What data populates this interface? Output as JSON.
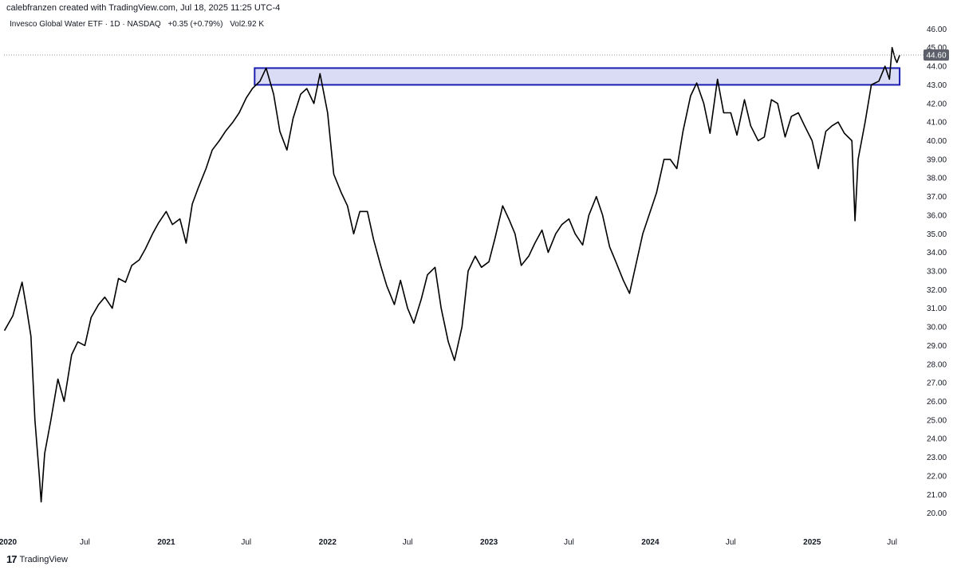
{
  "header": {
    "caption": "calebfranzen created with TradingView.com, Jul 18, 2025 11:25 UTC-4"
  },
  "legend": {
    "title": "Invesco Global Water ETF · 1D · NASDAQ",
    "change": "+0.35 (+0.79%)",
    "volume_label": "Vol",
    "volume": "2.92 K"
  },
  "footer": {
    "brand": "TradingView",
    "logo": "17"
  },
  "colors": {
    "line": "#000000",
    "zone_fill": "#d3d6f5",
    "zone_border": "#1a1fb0",
    "last_price_bg": "#5d606b"
  },
  "chart_data": {
    "type": "line",
    "series": [
      {
        "values_approx": true,
        "x": [
          "2020-01-01",
          "2020-01-20",
          "2020-02-10",
          "2020-02-20",
          "2020-03-01",
          "2020-03-10",
          "2020-03-20",
          "2020-03-24",
          "2020-04-01",
          "2020-04-15",
          "2020-05-01",
          "2020-05-15",
          "2020-06-01",
          "2020-06-15",
          "2020-07-01",
          "2020-07-15",
          "2020-08-01",
          "2020-08-15",
          "2020-09-01",
          "2020-09-15",
          "2020-10-01",
          "2020-10-15",
          "2020-11-01",
          "2020-11-15",
          "2020-12-01",
          "2020-12-15",
          "2021-01-01",
          "2021-01-15",
          "2021-02-01",
          "2021-02-15",
          "2021-03-01",
          "2021-03-15",
          "2021-04-01",
          "2021-04-15",
          "2021-05-01",
          "2021-05-15",
          "2021-06-01",
          "2021-06-15",
          "2021-07-01",
          "2021-07-15",
          "2021-08-01",
          "2021-08-15",
          "2021-09-01",
          "2021-09-15",
          "2021-10-01",
          "2021-10-15",
          "2021-11-01",
          "2021-11-15",
          "2021-12-01",
          "2021-12-15",
          "2022-01-01",
          "2022-01-15",
          "2022-02-01",
          "2022-02-15",
          "2022-03-01",
          "2022-03-15",
          "2022-04-01",
          "2022-04-15",
          "2022-05-01",
          "2022-05-15",
          "2022-06-01",
          "2022-06-15",
          "2022-07-01",
          "2022-07-15",
          "2022-08-01",
          "2022-08-15",
          "2022-09-01",
          "2022-09-15",
          "2022-10-01",
          "2022-10-15",
          "2022-11-01",
          "2022-11-15",
          "2022-12-01",
          "2022-12-15",
          "2023-01-01",
          "2023-01-15",
          "2023-02-01",
          "2023-02-15",
          "2023-03-01",
          "2023-03-15",
          "2023-04-01",
          "2023-04-15",
          "2023-05-01",
          "2023-05-15",
          "2023-06-01",
          "2023-06-15",
          "2023-07-01",
          "2023-07-15",
          "2023-08-01",
          "2023-08-15",
          "2023-09-01",
          "2023-09-15",
          "2023-10-01",
          "2023-10-15",
          "2023-11-01",
          "2023-11-15",
          "2023-12-01",
          "2023-12-15",
          "2024-01-01",
          "2024-01-15",
          "2024-02-01",
          "2024-02-15",
          "2024-03-01",
          "2024-03-15",
          "2024-04-01",
          "2024-04-15",
          "2024-05-01",
          "2024-05-15",
          "2024-06-01",
          "2024-06-15",
          "2024-07-01",
          "2024-07-15",
          "2024-08-01",
          "2024-08-15",
          "2024-09-01",
          "2024-09-15",
          "2024-10-01",
          "2024-10-15",
          "2024-11-01",
          "2024-11-15",
          "2024-12-01",
          "2024-12-15",
          "2025-01-01",
          "2025-01-15",
          "2025-02-01",
          "2025-02-15",
          "2025-03-01",
          "2025-03-15",
          "2025-04-01",
          "2025-04-08",
          "2025-04-15",
          "2025-05-01",
          "2025-05-15",
          "2025-06-01",
          "2025-06-15",
          "2025-06-25",
          "2025-07-01",
          "2025-07-08",
          "2025-07-12",
          "2025-07-18"
        ],
        "values": [
          29.8,
          30.6,
          32.4,
          31.0,
          29.5,
          25.0,
          22.0,
          20.6,
          23.2,
          25.0,
          27.2,
          26.0,
          28.5,
          29.2,
          29.0,
          30.5,
          31.2,
          31.6,
          31.0,
          32.6,
          32.4,
          33.3,
          33.6,
          34.2,
          35.0,
          35.6,
          36.2,
          35.5,
          35.8,
          34.5,
          36.6,
          37.5,
          38.5,
          39.5,
          40.0,
          40.5,
          41.0,
          41.5,
          42.3,
          42.8,
          43.2,
          43.9,
          42.5,
          40.5,
          39.5,
          41.2,
          42.5,
          42.8,
          42.0,
          43.6,
          41.5,
          38.2,
          37.2,
          36.5,
          35.0,
          36.2,
          36.2,
          34.7,
          33.3,
          32.2,
          31.2,
          32.5,
          31.0,
          30.2,
          31.5,
          32.8,
          33.2,
          31.0,
          29.2,
          28.2,
          30.0,
          33.0,
          33.8,
          33.2,
          33.5,
          34.8,
          36.5,
          35.8,
          35.0,
          33.3,
          33.8,
          34.5,
          35.2,
          34.0,
          35.0,
          35.5,
          35.8,
          35.0,
          34.4,
          36.0,
          37.0,
          36.0,
          34.3,
          33.5,
          32.5,
          31.8,
          33.5,
          35.0,
          36.2,
          37.2,
          39.0,
          39.0,
          38.5,
          40.5,
          42.4,
          43.1,
          42.0,
          40.4,
          43.3,
          41.5,
          41.5,
          40.3,
          42.2,
          40.8,
          40.0,
          40.2,
          42.2,
          42.0,
          40.2,
          41.3,
          41.5,
          40.8,
          40.0,
          38.5,
          40.5,
          40.8,
          41.0,
          40.4,
          40.0,
          35.7,
          39.0,
          41.0,
          43.0,
          43.2,
          44.0,
          43.3,
          45.0,
          44.4,
          44.2,
          44.6
        ]
      }
    ],
    "x_tick_labels": [
      "2020",
      "Jul",
      "2021",
      "Jul",
      "2022",
      "Jul",
      "2023",
      "Jul",
      "2024",
      "Jul",
      "2025",
      "Jul"
    ],
    "y_tick_labels": [
      "20.00",
      "21.00",
      "22.00",
      "23.00",
      "24.00",
      "25.00",
      "26.00",
      "27.00",
      "28.00",
      "29.00",
      "30.00",
      "31.00",
      "32.00",
      "33.00",
      "34.00",
      "35.00",
      "36.00",
      "37.00",
      "38.00",
      "39.00",
      "40.00",
      "41.00",
      "42.00",
      "43.00",
      "44.00",
      "45.00",
      "46.00"
    ],
    "ylim": [
      19.3,
      46.7
    ],
    "xlim": [
      "2019-12-31",
      "2025-09-10"
    ],
    "last_price_label": "44.60",
    "zone": {
      "x_start": "2021-07-20",
      "x_end": "2025-07-18",
      "y_low": 43.0,
      "y_high": 43.9
    },
    "grid": false,
    "xlabel": "",
    "ylabel": ""
  }
}
